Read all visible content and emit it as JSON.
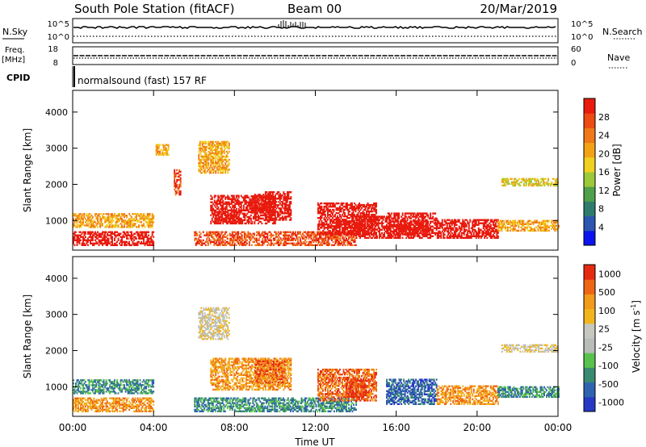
{
  "header": {
    "station": "South Pole Station (fitACF)",
    "beam": "Beam 00",
    "date": "20/Mar/2019"
  },
  "strips": {
    "nsky_label": "N.Sky",
    "nsky_ticks": [
      "10^5",
      "10^0"
    ],
    "nsearch_label": "N.Search",
    "nsearch_ticks": [
      "10^5",
      "10^0"
    ],
    "freq_label": "Freq.",
    "freq_unit": "[MHz]",
    "freq_ticks": [
      "18",
      "8"
    ],
    "nave_label": "Nave",
    "nave_ticks": [
      "60",
      "0"
    ],
    "cpid_label": "CPID",
    "cpid_text": "normalsound (fast) 157 RF"
  },
  "colors": {
    "power": [
      "#0b14ee",
      "#2c56b0",
      "#2f7c6e",
      "#4fa04a",
      "#9cc93a",
      "#f0d020",
      "#f3a216",
      "#f07818",
      "#ee4a14",
      "#e81b0e"
    ],
    "velocity": [
      "#2639c6",
      "#2f63b0",
      "#3a8a72",
      "#58c24c",
      "#b8bdb8",
      "#c6c8c0",
      "#f2b61c",
      "#f29a1a",
      "#ee6614",
      "#e62a12"
    ]
  },
  "chart_data": [
    {
      "type": "heatmap",
      "name": "power",
      "xlabel": "",
      "ylabel": "Slant Range [km]",
      "xlim": [
        0,
        24
      ],
      "ylim": [
        180,
        4600
      ],
      "yticks": [
        "1000",
        "2000",
        "3000",
        "4000"
      ],
      "colorbar": {
        "label": "Power [dB]",
        "range": [
          0,
          32
        ],
        "ticks": [
          "4",
          "8",
          "12",
          "16",
          "20",
          "24",
          "28"
        ]
      },
      "regions": [
        {
          "t": [
            0.0,
            4.0
          ],
          "r": [
            800,
            1200
          ],
          "level": 6
        },
        {
          "t": [
            0.0,
            4.0
          ],
          "r": [
            300,
            700
          ],
          "level": 10
        },
        {
          "t": [
            4.1,
            4.7
          ],
          "r": [
            2800,
            3100
          ],
          "level": 6
        },
        {
          "t": [
            5.0,
            5.3
          ],
          "r": [
            1700,
            2400
          ],
          "level": 8
        },
        {
          "t": [
            6.2,
            7.7
          ],
          "r": [
            2300,
            3200
          ],
          "level": 6
        },
        {
          "t": [
            6.8,
            10.0
          ],
          "r": [
            900,
            1700
          ],
          "level": 18
        },
        {
          "t": [
            7.0,
            8.2
          ],
          "r": [
            950,
            1250
          ],
          "level": 28
        },
        {
          "t": [
            8.8,
            9.8
          ],
          "r": [
            1200,
            1700
          ],
          "level": 22
        },
        {
          "t": [
            9.5,
            10.8
          ],
          "r": [
            1000,
            1800
          ],
          "level": 14
        },
        {
          "t": [
            6.0,
            14.0
          ],
          "r": [
            300,
            700
          ],
          "level": 8
        },
        {
          "t": [
            12.1,
            15.0
          ],
          "r": [
            600,
            1500
          ],
          "level": 16
        },
        {
          "t": [
            13.0,
            14.0
          ],
          "r": [
            600,
            1000
          ],
          "level": 24
        },
        {
          "t": [
            14.0,
            15.7
          ],
          "r": [
            500,
            1100
          ],
          "level": 12
        },
        {
          "t": [
            15.5,
            18.0
          ],
          "r": [
            500,
            1200
          ],
          "level": 18
        },
        {
          "t": [
            16.0,
            17.5
          ],
          "r": [
            600,
            1000
          ],
          "level": 26
        },
        {
          "t": [
            18.0,
            21.0
          ],
          "r": [
            500,
            1000
          ],
          "level": 10
        },
        {
          "t": [
            21.0,
            24.0
          ],
          "r": [
            700,
            1000
          ],
          "level": 6
        },
        {
          "t": [
            21.2,
            24.0
          ],
          "r": [
            1950,
            2150
          ],
          "level": 5
        }
      ]
    },
    {
      "type": "heatmap",
      "name": "velocity",
      "xlabel": "Time UT",
      "ylabel": "Slant Range [km]",
      "xlim": [
        0,
        24
      ],
      "ylim": [
        180,
        4600
      ],
      "xticks": [
        "00:00",
        "04:00",
        "08:00",
        "12:00",
        "16:00",
        "20:00",
        "00:00"
      ],
      "yticks": [
        "1000",
        "2000",
        "3000",
        "4000"
      ],
      "colorbar": {
        "label": "Velocity [m s",
        "label_sup": "-1",
        "label_end": "]",
        "ticks": [
          "1000",
          "500",
          "100",
          "25",
          "-25",
          "-100",
          "-500",
          "-1000"
        ]
      },
      "regions": [
        {
          "t": [
            0.0,
            4.0
          ],
          "r": [
            800,
            1200
          ],
          "level": 2
        },
        {
          "t": [
            0.0,
            4.0
          ],
          "r": [
            300,
            700
          ],
          "level": 7
        },
        {
          "t": [
            6.2,
            7.7
          ],
          "r": [
            2300,
            3200
          ],
          "level": 5
        },
        {
          "t": [
            6.8,
            10.8
          ],
          "r": [
            900,
            1800
          ],
          "level": 7
        },
        {
          "t": [
            9.0,
            10.5
          ],
          "r": [
            1100,
            1700
          ],
          "level": 8
        },
        {
          "t": [
            6.0,
            14.0
          ],
          "r": [
            300,
            700
          ],
          "level": 2
        },
        {
          "t": [
            12.1,
            15.0
          ],
          "r": [
            600,
            1500
          ],
          "level": 8
        },
        {
          "t": [
            13.5,
            14.5
          ],
          "r": [
            700,
            1200
          ],
          "level": 9
        },
        {
          "t": [
            15.5,
            18.0
          ],
          "r": [
            500,
            1200
          ],
          "level": 1
        },
        {
          "t": [
            18.0,
            21.0
          ],
          "r": [
            500,
            1000
          ],
          "level": 7
        },
        {
          "t": [
            21.0,
            24.0
          ],
          "r": [
            700,
            1000
          ],
          "level": 2
        },
        {
          "t": [
            21.2,
            24.0
          ],
          "r": [
            1950,
            2150
          ],
          "level": 5
        }
      ]
    }
  ]
}
